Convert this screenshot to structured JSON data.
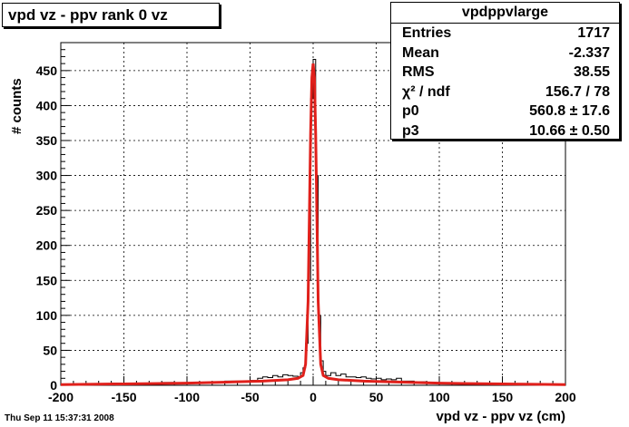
{
  "title": "vpd vz - ppv rank 0 vz",
  "stats": {
    "name": "vpdppvlarge",
    "rows": [
      {
        "key": "Entries",
        "value": "1717"
      },
      {
        "key": "Mean",
        "value": "-2.337"
      },
      {
        "key": "RMS",
        "value": "38.55"
      },
      {
        "key": "χ² / ndf",
        "value": "156.7 / 78"
      },
      {
        "key": "p0",
        "value": "560.8 ± 17.6"
      },
      {
        "key": "p3",
        "value": "10.66 ± 0.50"
      }
    ]
  },
  "date": "Thu Sep 11 15:37:31 2008",
  "colors": {
    "histogram": "#000000",
    "fit": "#e0201b",
    "grid": "#000000"
  },
  "chart_data": {
    "type": "line",
    "xlabel": "vpd vz - ppv vz (cm)",
    "ylabel": "# counts",
    "xlim": [
      -200,
      200
    ],
    "ylim": [
      0,
      490
    ],
    "grid": true,
    "xticks": [
      -200,
      -150,
      -100,
      -50,
      0,
      50,
      100,
      150,
      200
    ],
    "yticks": [
      0,
      50,
      100,
      150,
      200,
      250,
      300,
      350,
      400,
      450
    ],
    "series": [
      {
        "kind": "histogram",
        "bin_width": 2,
        "bins": [
          [
            -200,
            0
          ],
          [
            -190,
            1
          ],
          [
            -180,
            2
          ],
          [
            -170,
            1
          ],
          [
            -160,
            3
          ],
          [
            -150,
            2
          ],
          [
            -140,
            3
          ],
          [
            -130,
            2
          ],
          [
            -120,
            4
          ],
          [
            -110,
            3
          ],
          [
            -100,
            3
          ],
          [
            -90,
            4
          ],
          [
            -80,
            5
          ],
          [
            -70,
            6
          ],
          [
            -60,
            6
          ],
          [
            -50,
            7
          ],
          [
            -44,
            10
          ],
          [
            -40,
            12
          ],
          [
            -36,
            11
          ],
          [
            -32,
            14
          ],
          [
            -28,
            12
          ],
          [
            -24,
            15
          ],
          [
            -20,
            14
          ],
          [
            -16,
            13
          ],
          [
            -12,
            12
          ],
          [
            -10,
            18
          ],
          [
            -8,
            25
          ],
          [
            -6,
            60
          ],
          [
            -4,
            150
          ],
          [
            -2,
            410
          ],
          [
            0,
            466
          ],
          [
            2,
            300
          ],
          [
            4,
            100
          ],
          [
            6,
            35
          ],
          [
            8,
            20
          ],
          [
            10,
            14
          ],
          [
            14,
            18
          ],
          [
            18,
            14
          ],
          [
            22,
            16
          ],
          [
            26,
            12
          ],
          [
            30,
            12
          ],
          [
            34,
            11
          ],
          [
            38,
            12
          ],
          [
            42,
            10
          ],
          [
            46,
            9
          ],
          [
            50,
            10
          ],
          [
            54,
            8
          ],
          [
            58,
            9
          ],
          [
            62,
            8
          ],
          [
            66,
            10
          ],
          [
            70,
            6
          ],
          [
            80,
            5
          ],
          [
            90,
            3
          ],
          [
            100,
            3
          ],
          [
            110,
            3
          ],
          [
            120,
            2
          ],
          [
            130,
            2
          ],
          [
            140,
            2
          ],
          [
            150,
            1
          ],
          [
            160,
            1
          ],
          [
            170,
            0
          ],
          [
            180,
            0
          ],
          [
            190,
            0
          ]
        ]
      },
      {
        "kind": "fit",
        "x": [
          -200,
          -150,
          -100,
          -60,
          -40,
          -20,
          -12,
          -8,
          -6,
          -4,
          -2,
          -1,
          0,
          1,
          2,
          4,
          6,
          8,
          12,
          20,
          40,
          60,
          100,
          150,
          200
        ],
        "y": [
          1,
          2,
          3,
          5,
          6,
          8,
          10,
          14,
          30,
          120,
          360,
          440,
          460,
          440,
          360,
          120,
          30,
          14,
          10,
          8,
          6,
          5,
          3,
          2,
          1
        ]
      }
    ]
  }
}
